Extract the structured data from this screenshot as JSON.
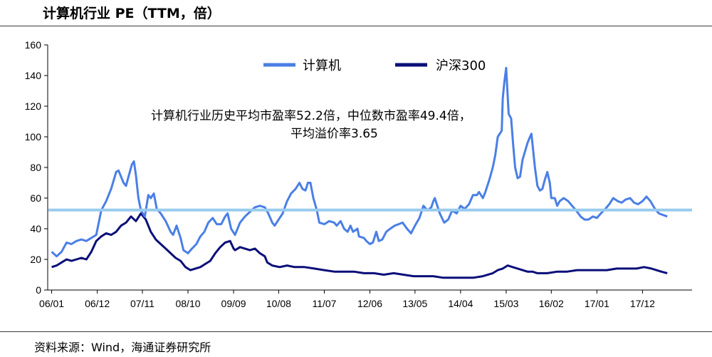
{
  "title": "计算机行业 PE（TTM，倍）",
  "source": "资料来源：Wind，海通证券研究所",
  "chart_data": {
    "type": "line",
    "ylim": [
      0,
      160
    ],
    "yticks": [
      0,
      20,
      40,
      60,
      80,
      100,
      120,
      140,
      160
    ],
    "xlim": [
      2005.92,
      2018.92
    ],
    "xticks": [
      {
        "t": 2006.0,
        "label": "06/01"
      },
      {
        "t": 2006.92,
        "label": "06/12"
      },
      {
        "t": 2007.83,
        "label": "07/11"
      },
      {
        "t": 2008.75,
        "label": "08/10"
      },
      {
        "t": 2009.67,
        "label": "09/09"
      },
      {
        "t": 2010.58,
        "label": "10/08"
      },
      {
        "t": 2011.5,
        "label": "11/07"
      },
      {
        "t": 2012.42,
        "label": "12/06"
      },
      {
        "t": 2013.33,
        "label": "13/05"
      },
      {
        "t": 2014.25,
        "label": "14/04"
      },
      {
        "t": 2015.17,
        "label": "15/03"
      },
      {
        "t": 2016.08,
        "label": "16/02"
      },
      {
        "t": 2017.0,
        "label": "17/01"
      },
      {
        "t": 2017.92,
        "label": "17/12"
      }
    ],
    "grid": false,
    "legend_position": "top-center",
    "annotation": [
      "计算机行业历史平均市盈率52.2倍，中位数市盈率49.4倍，",
      "平均溢价率3.65"
    ],
    "hline": {
      "value": 52.2,
      "color": "#99ccee"
    },
    "series": [
      {
        "name": "计算机",
        "color": "#4a7fe5",
        "points": [
          [
            2006.0,
            25
          ],
          [
            2006.1,
            22
          ],
          [
            2006.2,
            25
          ],
          [
            2006.3,
            31
          ],
          [
            2006.4,
            30
          ],
          [
            2006.5,
            32
          ],
          [
            2006.6,
            33
          ],
          [
            2006.7,
            32
          ],
          [
            2006.8,
            34
          ],
          [
            2006.9,
            36
          ],
          [
            2007.0,
            52
          ],
          [
            2007.1,
            58
          ],
          [
            2007.2,
            66
          ],
          [
            2007.3,
            77
          ],
          [
            2007.35,
            78
          ],
          [
            2007.45,
            70
          ],
          [
            2007.5,
            68
          ],
          [
            2007.55,
            74
          ],
          [
            2007.62,
            82
          ],
          [
            2007.66,
            84
          ],
          [
            2007.7,
            75
          ],
          [
            2007.75,
            60
          ],
          [
            2007.8,
            52
          ],
          [
            2007.88,
            48
          ],
          [
            2007.95,
            62
          ],
          [
            2008.0,
            60
          ],
          [
            2008.06,
            63
          ],
          [
            2008.12,
            53
          ],
          [
            2008.2,
            50
          ],
          [
            2008.3,
            45
          ],
          [
            2008.4,
            38
          ],
          [
            2008.45,
            36
          ],
          [
            2008.52,
            42
          ],
          [
            2008.6,
            34
          ],
          [
            2008.66,
            26
          ],
          [
            2008.75,
            24
          ],
          [
            2008.83,
            27
          ],
          [
            2008.92,
            30
          ],
          [
            2009.0,
            35
          ],
          [
            2009.08,
            38
          ],
          [
            2009.16,
            44
          ],
          [
            2009.25,
            47
          ],
          [
            2009.33,
            43
          ],
          [
            2009.42,
            43
          ],
          [
            2009.5,
            48
          ],
          [
            2009.55,
            50
          ],
          [
            2009.62,
            40
          ],
          [
            2009.7,
            36
          ],
          [
            2009.8,
            44
          ],
          [
            2009.9,
            48
          ],
          [
            2010.0,
            51
          ],
          [
            2010.1,
            54
          ],
          [
            2010.2,
            55
          ],
          [
            2010.3,
            54
          ],
          [
            2010.37,
            50
          ],
          [
            2010.45,
            44
          ],
          [
            2010.5,
            42
          ],
          [
            2010.58,
            46
          ],
          [
            2010.66,
            50
          ],
          [
            2010.75,
            58
          ],
          [
            2010.83,
            63
          ],
          [
            2010.92,
            66
          ],
          [
            2011.0,
            70
          ],
          [
            2011.06,
            66
          ],
          [
            2011.12,
            65
          ],
          [
            2011.17,
            70
          ],
          [
            2011.22,
            70
          ],
          [
            2011.28,
            60
          ],
          [
            2011.35,
            52
          ],
          [
            2011.4,
            44
          ],
          [
            2011.5,
            43
          ],
          [
            2011.6,
            45
          ],
          [
            2011.7,
            44
          ],
          [
            2011.75,
            42
          ],
          [
            2011.83,
            45
          ],
          [
            2011.9,
            40
          ],
          [
            2011.97,
            38
          ],
          [
            2012.03,
            42
          ],
          [
            2012.08,
            38
          ],
          [
            2012.17,
            40
          ],
          [
            2012.2,
            35
          ],
          [
            2012.3,
            34
          ],
          [
            2012.35,
            32
          ],
          [
            2012.42,
            30
          ],
          [
            2012.48,
            31
          ],
          [
            2012.55,
            38
          ],
          [
            2012.6,
            32
          ],
          [
            2012.67,
            33
          ],
          [
            2012.75,
            38
          ],
          [
            2012.83,
            40
          ],
          [
            2012.92,
            42
          ],
          [
            2013.0,
            43
          ],
          [
            2013.08,
            44
          ],
          [
            2013.17,
            40
          ],
          [
            2013.25,
            37
          ],
          [
            2013.33,
            42
          ],
          [
            2013.42,
            47
          ],
          [
            2013.5,
            55
          ],
          [
            2013.58,
            52
          ],
          [
            2013.66,
            54
          ],
          [
            2013.7,
            58
          ],
          [
            2013.73,
            60
          ],
          [
            2013.83,
            50
          ],
          [
            2013.92,
            44
          ],
          [
            2014.0,
            46
          ],
          [
            2014.08,
            52
          ],
          [
            2014.17,
            50
          ],
          [
            2014.25,
            55
          ],
          [
            2014.33,
            53
          ],
          [
            2014.42,
            56
          ],
          [
            2014.5,
            62
          ],
          [
            2014.58,
            62
          ],
          [
            2014.62,
            64
          ],
          [
            2014.7,
            60
          ],
          [
            2014.75,
            64
          ],
          [
            2014.83,
            72
          ],
          [
            2014.9,
            80
          ],
          [
            2014.95,
            88
          ],
          [
            2015.0,
            100
          ],
          [
            2015.08,
            104
          ],
          [
            2015.1,
            125
          ],
          [
            2015.13,
            135
          ],
          [
            2015.17,
            145
          ],
          [
            2015.22,
            115
          ],
          [
            2015.27,
            112
          ],
          [
            2015.31,
            95
          ],
          [
            2015.35,
            80
          ],
          [
            2015.4,
            73
          ],
          [
            2015.45,
            74
          ],
          [
            2015.5,
            85
          ],
          [
            2015.6,
            96
          ],
          [
            2015.65,
            100
          ],
          [
            2015.68,
            102
          ],
          [
            2015.75,
            80
          ],
          [
            2015.8,
            68
          ],
          [
            2015.85,
            65
          ],
          [
            2015.9,
            66
          ],
          [
            2015.95,
            72
          ],
          [
            2016.0,
            77
          ],
          [
            2016.05,
            70
          ],
          [
            2016.08,
            60
          ],
          [
            2016.15,
            60
          ],
          [
            2016.2,
            55
          ],
          [
            2016.25,
            58
          ],
          [
            2016.33,
            60
          ],
          [
            2016.42,
            58
          ],
          [
            2016.5,
            55
          ],
          [
            2016.58,
            52
          ],
          [
            2016.67,
            48
          ],
          [
            2016.75,
            46
          ],
          [
            2016.83,
            46
          ],
          [
            2016.92,
            48
          ],
          [
            2017.0,
            47
          ],
          [
            2017.08,
            50
          ],
          [
            2017.17,
            53
          ],
          [
            2017.25,
            56
          ],
          [
            2017.33,
            60
          ],
          [
            2017.42,
            58
          ],
          [
            2017.5,
            57
          ],
          [
            2017.58,
            59
          ],
          [
            2017.67,
            60
          ],
          [
            2017.75,
            57
          ],
          [
            2017.83,
            56
          ],
          [
            2017.92,
            58
          ],
          [
            2018.0,
            61
          ],
          [
            2018.08,
            58
          ],
          [
            2018.17,
            53
          ],
          [
            2018.25,
            50
          ],
          [
            2018.33,
            49
          ],
          [
            2018.42,
            48
          ]
        ]
      },
      {
        "name": "沪深300",
        "color": "#0a0f78",
        "points": [
          [
            2006.0,
            15
          ],
          [
            2006.1,
            16
          ],
          [
            2006.2,
            18
          ],
          [
            2006.3,
            20
          ],
          [
            2006.4,
            19
          ],
          [
            2006.5,
            20
          ],
          [
            2006.6,
            21
          ],
          [
            2006.7,
            20
          ],
          [
            2006.8,
            25
          ],
          [
            2006.9,
            32
          ],
          [
            2007.0,
            35
          ],
          [
            2007.1,
            37
          ],
          [
            2007.2,
            36
          ],
          [
            2007.3,
            38
          ],
          [
            2007.4,
            42
          ],
          [
            2007.5,
            44
          ],
          [
            2007.6,
            48
          ],
          [
            2007.7,
            45
          ],
          [
            2007.8,
            50
          ],
          [
            2007.9,
            46
          ],
          [
            2008.0,
            38
          ],
          [
            2008.1,
            33
          ],
          [
            2008.2,
            30
          ],
          [
            2008.3,
            27
          ],
          [
            2008.4,
            24
          ],
          [
            2008.5,
            21
          ],
          [
            2008.6,
            19
          ],
          [
            2008.7,
            15
          ],
          [
            2008.8,
            13
          ],
          [
            2008.9,
            14
          ],
          [
            2009.0,
            15
          ],
          [
            2009.1,
            17
          ],
          [
            2009.2,
            19
          ],
          [
            2009.3,
            24
          ],
          [
            2009.4,
            28
          ],
          [
            2009.5,
            31
          ],
          [
            2009.6,
            32
          ],
          [
            2009.67,
            27
          ],
          [
            2009.7,
            26
          ],
          [
            2009.8,
            28
          ],
          [
            2009.9,
            27
          ],
          [
            2010.0,
            26
          ],
          [
            2010.1,
            27
          ],
          [
            2010.2,
            24
          ],
          [
            2010.3,
            22
          ],
          [
            2010.35,
            18
          ],
          [
            2010.45,
            16
          ],
          [
            2010.6,
            15
          ],
          [
            2010.75,
            16
          ],
          [
            2010.9,
            15
          ],
          [
            2011.1,
            15
          ],
          [
            2011.3,
            14
          ],
          [
            2011.5,
            13
          ],
          [
            2011.7,
            12
          ],
          [
            2011.9,
            12
          ],
          [
            2012.1,
            12
          ],
          [
            2012.3,
            11
          ],
          [
            2012.5,
            11
          ],
          [
            2012.7,
            10
          ],
          [
            2012.9,
            11
          ],
          [
            2013.1,
            10
          ],
          [
            2013.3,
            9
          ],
          [
            2013.5,
            9
          ],
          [
            2013.7,
            9
          ],
          [
            2013.9,
            8
          ],
          [
            2014.1,
            8
          ],
          [
            2014.3,
            8
          ],
          [
            2014.5,
            8
          ],
          [
            2014.7,
            9
          ],
          [
            2014.9,
            11
          ],
          [
            2015.0,
            13
          ],
          [
            2015.1,
            14
          ],
          [
            2015.2,
            16
          ],
          [
            2015.3,
            15
          ],
          [
            2015.4,
            14
          ],
          [
            2015.5,
            13
          ],
          [
            2015.6,
            12
          ],
          [
            2015.7,
            12
          ],
          [
            2015.8,
            11
          ],
          [
            2015.9,
            11
          ],
          [
            2016.0,
            11
          ],
          [
            2016.2,
            12
          ],
          [
            2016.4,
            12
          ],
          [
            2016.6,
            13
          ],
          [
            2016.8,
            13
          ],
          [
            2017.0,
            13
          ],
          [
            2017.2,
            13
          ],
          [
            2017.4,
            14
          ],
          [
            2017.6,
            14
          ],
          [
            2017.8,
            14
          ],
          [
            2017.95,
            15
          ],
          [
            2018.1,
            14
          ],
          [
            2018.2,
            13
          ],
          [
            2018.3,
            12
          ],
          [
            2018.42,
            11
          ]
        ]
      }
    ]
  }
}
